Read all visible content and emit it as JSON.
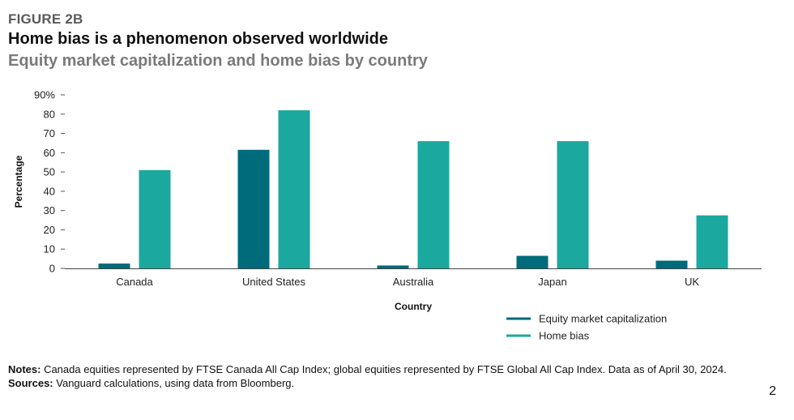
{
  "header": {
    "figure_label": "FIGURE 2B",
    "title": "Home bias is a phenomenon observed worldwide",
    "subtitle": "Equity market capitalization and home bias by country"
  },
  "chart_data": {
    "type": "bar",
    "xlabel": "Country",
    "ylabel": "Percentage",
    "ylim": [
      0,
      90
    ],
    "yticks": [
      "0",
      "10",
      "20",
      "30",
      "40",
      "50",
      "60",
      "70",
      "80",
      "90%"
    ],
    "categories": [
      "Canada",
      "United States",
      "Australia",
      "Japan",
      "UK"
    ],
    "series": [
      {
        "name": "Equity market capitalization",
        "color": "#006b7a",
        "values": [
          2.5,
          61.5,
          1.5,
          6.5,
          4
        ]
      },
      {
        "name": "Home bias",
        "color": "#1ba89f",
        "values": [
          51,
          82,
          66,
          66,
          27.5
        ]
      }
    ],
    "grid": false,
    "legend_position": "bottom-right"
  },
  "notes": {
    "notes_label": "Notes:",
    "notes_text": " Canada equities represented by FTSE Canada All Cap Index; global equities represented by FTSE Global All Cap Index. Data as of April 30, 2024.",
    "sources_label": "Sources:",
    "sources_text": " Vanguard calculations, using data from Bloomberg."
  },
  "page_number": "2"
}
